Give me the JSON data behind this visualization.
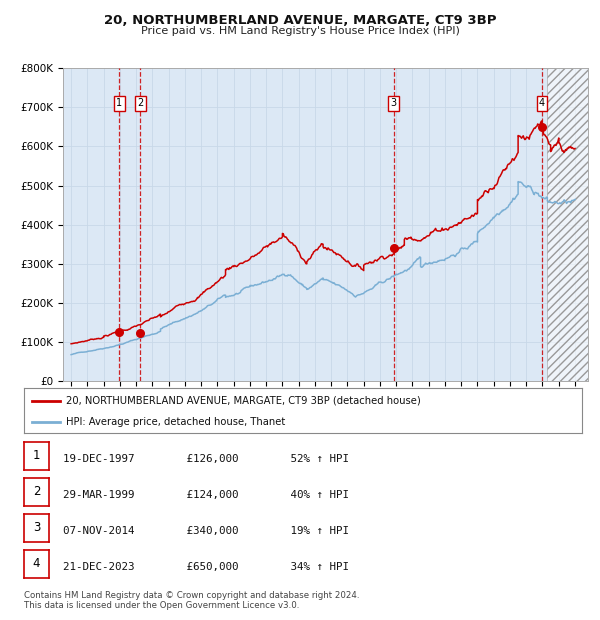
{
  "title": "20, NORTHUMBERLAND AVENUE, MARGATE, CT9 3BP",
  "subtitle": "Price paid vs. HM Land Registry's House Price Index (HPI)",
  "ylim": [
    0,
    800000
  ],
  "yticks": [
    0,
    100000,
    200000,
    300000,
    400000,
    500000,
    600000,
    700000,
    800000
  ],
  "ytick_labels": [
    "£0",
    "£100K",
    "£200K",
    "£300K",
    "£400K",
    "£500K",
    "£600K",
    "£700K",
    "£800K"
  ],
  "xlim_start": 1994.5,
  "xlim_end": 2026.8,
  "hpi_color": "#7bafd4",
  "price_color": "#cc0000",
  "grid_color": "#c8d8e8",
  "bg_color": "#dce8f5",
  "legend_label_price": "20, NORTHUMBERLAND AVENUE, MARGATE, CT9 3BP (detached house)",
  "legend_label_hpi": "HPI: Average price, detached house, Thanet",
  "transactions": [
    {
      "num": 1,
      "date_label": "19-DEC-1997",
      "year": 1997.97,
      "price": 126000,
      "hpi_pct": "52%",
      "arrow": "↑"
    },
    {
      "num": 2,
      "date_label": "29-MAR-1999",
      "year": 1999.25,
      "price": 124000,
      "hpi_pct": "40%",
      "arrow": "↑"
    },
    {
      "num": 3,
      "date_label": "07-NOV-2014",
      "year": 2014.85,
      "price": 340000,
      "hpi_pct": "19%",
      "arrow": "↑"
    },
    {
      "num": 4,
      "date_label": "21-DEC-2023",
      "year": 2023.97,
      "price": 650000,
      "hpi_pct": "34%",
      "arrow": "↑"
    }
  ],
  "footer_line1": "Contains HM Land Registry data © Crown copyright and database right 2024.",
  "footer_line2": "This data is licensed under the Open Government Licence v3.0.",
  "hatch_region_start": 2024.3,
  "hatch_region_end": 2026.8
}
